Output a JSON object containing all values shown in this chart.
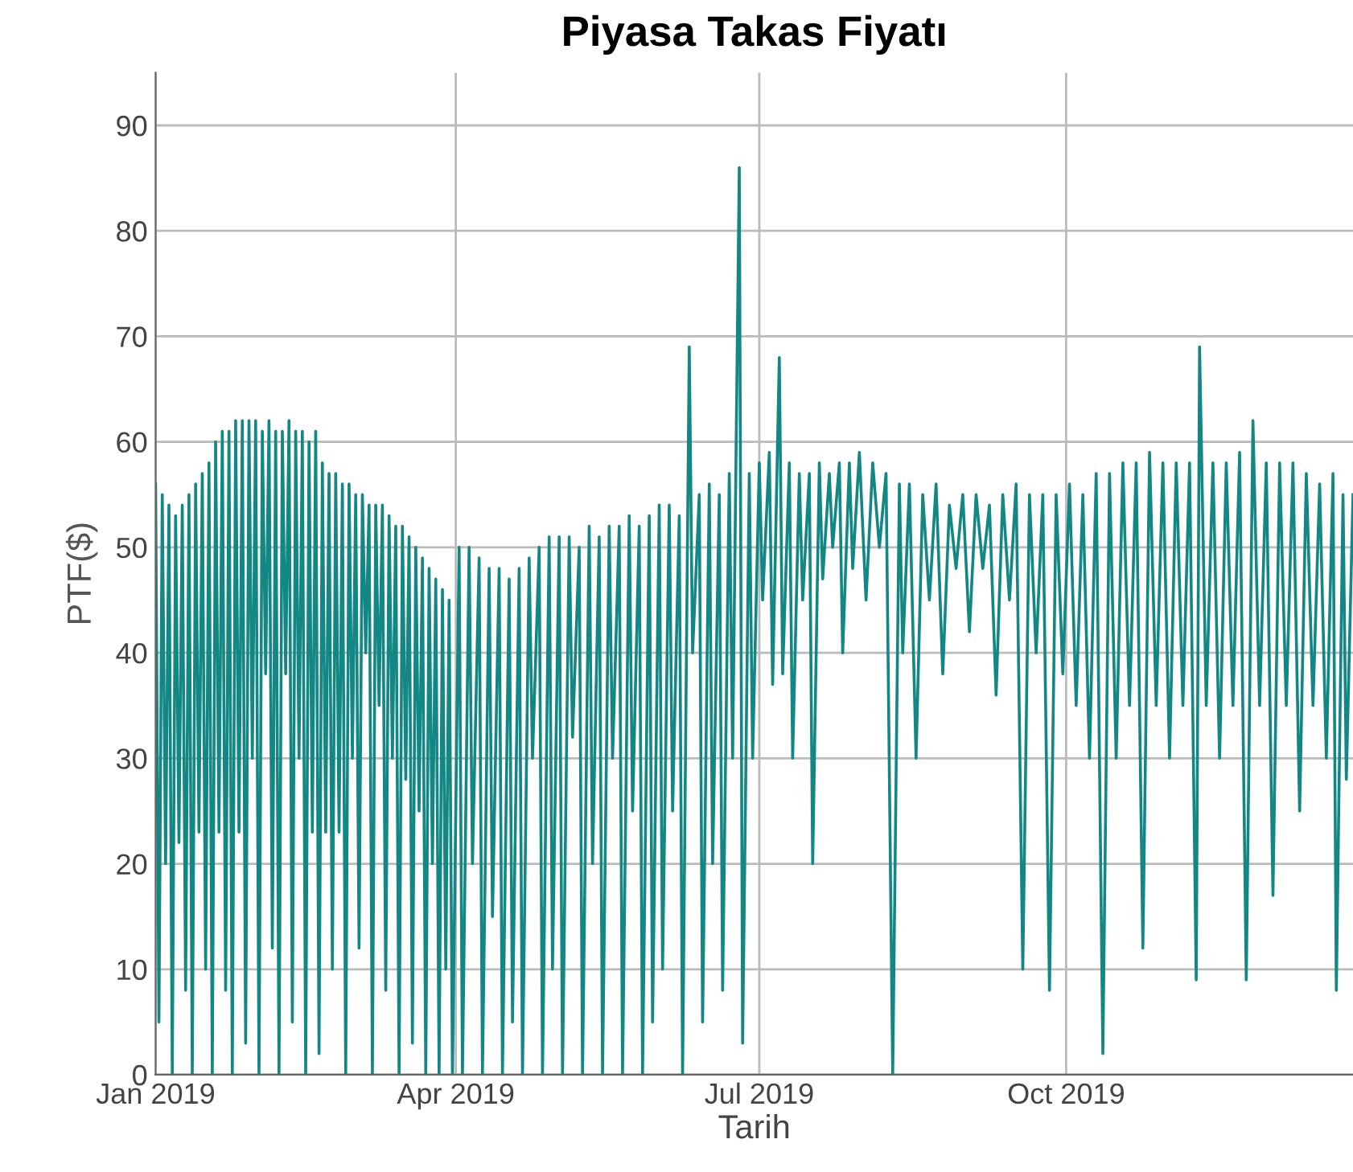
{
  "chart_data": {
    "type": "line",
    "title": "Piyasa Takas Fiyatı",
    "xlabel": "Tarih",
    "ylabel": "PTF($)",
    "xlim": [
      "2019-01-01",
      "2019-12-26"
    ],
    "ylim": [
      0,
      95
    ],
    "xticks": [
      {
        "value": "2019-01-01",
        "label": "Jan 2019"
      },
      {
        "value": "2019-04-01",
        "label": "Apr 2019"
      },
      {
        "value": "2019-07-01",
        "label": "Jul 2019"
      },
      {
        "value": "2019-10-01",
        "label": "Oct 2019"
      }
    ],
    "yticks": [
      0,
      10,
      20,
      30,
      40,
      50,
      60,
      70,
      80,
      90
    ],
    "grid": true,
    "marker": "none",
    "line_style": "solid",
    "series": [
      {
        "color": "#138784",
        "x": [
          "2019-01-01",
          "2019-01-02",
          "2019-01-03",
          "2019-01-04",
          "2019-01-05",
          "2019-01-06",
          "2019-01-07",
          "2019-01-08",
          "2019-01-09",
          "2019-01-10",
          "2019-01-11",
          "2019-01-12",
          "2019-01-13",
          "2019-01-14",
          "2019-01-15",
          "2019-01-16",
          "2019-01-17",
          "2019-01-18",
          "2019-01-19",
          "2019-01-20",
          "2019-01-21",
          "2019-01-22",
          "2019-01-23",
          "2019-01-24",
          "2019-01-25",
          "2019-01-26",
          "2019-01-27",
          "2019-01-28",
          "2019-01-29",
          "2019-01-30",
          "2019-01-31",
          "2019-02-01",
          "2019-02-02",
          "2019-02-03",
          "2019-02-04",
          "2019-02-05",
          "2019-02-06",
          "2019-02-07",
          "2019-02-08",
          "2019-02-09",
          "2019-02-10",
          "2019-02-11",
          "2019-02-12",
          "2019-02-13",
          "2019-02-14",
          "2019-02-15",
          "2019-02-16",
          "2019-02-17",
          "2019-02-18",
          "2019-02-19",
          "2019-02-20",
          "2019-02-21",
          "2019-02-22",
          "2019-02-23",
          "2019-02-24",
          "2019-02-25",
          "2019-02-26",
          "2019-02-27",
          "2019-02-28",
          "2019-03-01",
          "2019-03-02",
          "2019-03-03",
          "2019-03-04",
          "2019-03-05",
          "2019-03-06",
          "2019-03-07",
          "2019-03-08",
          "2019-03-09",
          "2019-03-10",
          "2019-03-11",
          "2019-03-12",
          "2019-03-13",
          "2019-03-14",
          "2019-03-15",
          "2019-03-16",
          "2019-03-17",
          "2019-03-18",
          "2019-03-19",
          "2019-03-20",
          "2019-03-21",
          "2019-03-22",
          "2019-03-23",
          "2019-03-24",
          "2019-03-25",
          "2019-03-26",
          "2019-03-27",
          "2019-03-28",
          "2019-03-29",
          "2019-03-30",
          "2019-03-31",
          "2019-04-02",
          "2019-04-03",
          "2019-04-05",
          "2019-04-06",
          "2019-04-08",
          "2019-04-09",
          "2019-04-11",
          "2019-04-12",
          "2019-04-14",
          "2019-04-15",
          "2019-04-17",
          "2019-04-18",
          "2019-04-20",
          "2019-04-21",
          "2019-04-23",
          "2019-04-24",
          "2019-04-26",
          "2019-04-27",
          "2019-04-29",
          "2019-04-30",
          "2019-05-02",
          "2019-05-03",
          "2019-05-05",
          "2019-05-06",
          "2019-05-08",
          "2019-05-09",
          "2019-05-11",
          "2019-05-12",
          "2019-05-14",
          "2019-05-15",
          "2019-05-17",
          "2019-05-18",
          "2019-05-20",
          "2019-05-21",
          "2019-05-23",
          "2019-05-24",
          "2019-05-26",
          "2019-05-27",
          "2019-05-29",
          "2019-05-30",
          "2019-06-01",
          "2019-06-02",
          "2019-06-04",
          "2019-06-05",
          "2019-06-07",
          "2019-06-08",
          "2019-06-10",
          "2019-06-11",
          "2019-06-13",
          "2019-06-14",
          "2019-06-16",
          "2019-06-17",
          "2019-06-19",
          "2019-06-20",
          "2019-06-22",
          "2019-06-23",
          "2019-06-25",
          "2019-06-26",
          "2019-06-28",
          "2019-06-29",
          "2019-07-01",
          "2019-07-02",
          "2019-07-04",
          "2019-07-05",
          "2019-07-07",
          "2019-07-08",
          "2019-07-10",
          "2019-07-11",
          "2019-07-13",
          "2019-07-14",
          "2019-07-16",
          "2019-07-17",
          "2019-07-19",
          "2019-07-20",
          "2019-07-22",
          "2019-07-23",
          "2019-07-25",
          "2019-07-26",
          "2019-07-28",
          "2019-07-29",
          "2019-07-31",
          "2019-08-02",
          "2019-08-04",
          "2019-08-06",
          "2019-08-08",
          "2019-08-10",
          "2019-08-12",
          "2019-08-13",
          "2019-08-15",
          "2019-08-17",
          "2019-08-19",
          "2019-08-21",
          "2019-08-23",
          "2019-08-25",
          "2019-08-27",
          "2019-08-29",
          "2019-08-31",
          "2019-09-02",
          "2019-09-04",
          "2019-09-06",
          "2019-09-08",
          "2019-09-10",
          "2019-09-12",
          "2019-09-14",
          "2019-09-16",
          "2019-09-18",
          "2019-09-20",
          "2019-09-22",
          "2019-09-24",
          "2019-09-26",
          "2019-09-28",
          "2019-09-30",
          "2019-10-02",
          "2019-10-04",
          "2019-10-06",
          "2019-10-08",
          "2019-10-10",
          "2019-10-12",
          "2019-10-14",
          "2019-10-16",
          "2019-10-18",
          "2019-10-20",
          "2019-10-22",
          "2019-10-24",
          "2019-10-26",
          "2019-10-28",
          "2019-10-30",
          "2019-11-01",
          "2019-11-03",
          "2019-11-05",
          "2019-11-07",
          "2019-11-09",
          "2019-11-10",
          "2019-11-12",
          "2019-11-14",
          "2019-11-16",
          "2019-11-18",
          "2019-11-20",
          "2019-11-22",
          "2019-11-24",
          "2019-11-26",
          "2019-11-28",
          "2019-11-30",
          "2019-12-02",
          "2019-12-04",
          "2019-12-06",
          "2019-12-08",
          "2019-12-10",
          "2019-12-12",
          "2019-12-14",
          "2019-12-16",
          "2019-12-18",
          "2019-12-20",
          "2019-12-21",
          "2019-12-23",
          "2019-12-24",
          "2019-12-26"
        ],
        "values": [
          56,
          5,
          55,
          20,
          54,
          0,
          53,
          22,
          54,
          8,
          55,
          0,
          56,
          23,
          57,
          10,
          58,
          0,
          60,
          23,
          61,
          8,
          61,
          0,
          62,
          23,
          62,
          3,
          62,
          30,
          62,
          0,
          61,
          38,
          62,
          12,
          61,
          0,
          61,
          38,
          62,
          5,
          61,
          30,
          61,
          0,
          60,
          23,
          61,
          2,
          58,
          23,
          57,
          10,
          57,
          23,
          56,
          0,
          56,
          30,
          55,
          12,
          55,
          40,
          54,
          0,
          54,
          35,
          54,
          8,
          53,
          30,
          52,
          0,
          52,
          28,
          51,
          3,
          50,
          25,
          49,
          0,
          48,
          20,
          47,
          0,
          46,
          10,
          45,
          0,
          50,
          0,
          50,
          20,
          49,
          0,
          48,
          15,
          48,
          0,
          47,
          5,
          48,
          0,
          49,
          30,
          50,
          0,
          51,
          10,
          51,
          0,
          51,
          32,
          50,
          0,
          52,
          20,
          51,
          0,
          52,
          30,
          52,
          0,
          53,
          25,
          52,
          0,
          53,
          5,
          54,
          10,
          54,
          25,
          53,
          0,
          69,
          40,
          55,
          5,
          56,
          20,
          55,
          8,
          57,
          30,
          86,
          3,
          57,
          30,
          58,
          45,
          59,
          37,
          68,
          38,
          58,
          30,
          57,
          45,
          57,
          20,
          58,
          47,
          57,
          50,
          58,
          40,
          58,
          48,
          59,
          45,
          58,
          50,
          57,
          0,
          56,
          40,
          56,
          30,
          55,
          45,
          56,
          38,
          54,
          48,
          55,
          42,
          55,
          48,
          54,
          36,
          55,
          45,
          56,
          10,
          55,
          40,
          55,
          8,
          55,
          38,
          56,
          35,
          55,
          30,
          57,
          2,
          57,
          30,
          58,
          35,
          58,
          12,
          59,
          35,
          58,
          30,
          58,
          35,
          58,
          9,
          69,
          35,
          58,
          30,
          58,
          35,
          59,
          9,
          62,
          35,
          58,
          17,
          58,
          35,
          58,
          25,
          57,
          35,
          56,
          30,
          57,
          8,
          55,
          28,
          55
        ]
      }
    ]
  }
}
